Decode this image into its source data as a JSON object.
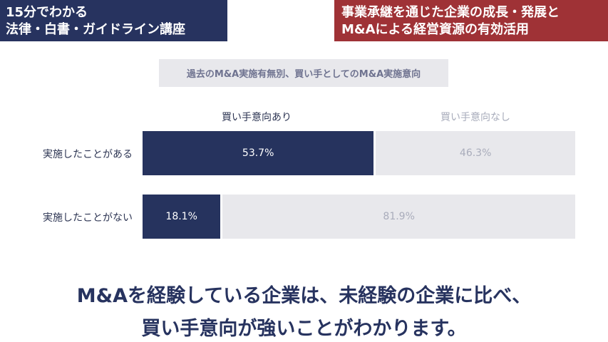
{
  "header": {
    "left": [
      "15分でわかる",
      "法律・白書・ガイドライン講座"
    ],
    "right": [
      "事業承継を通じた企業の成長・発展と",
      "M&Aによる経営資源の有効活用"
    ]
  },
  "chart_data": {
    "type": "bar",
    "stacked": true,
    "orientation": "horizontal",
    "percent": true,
    "title": "過去のM&A実施有無別、買い手としてのM&A実施意向",
    "categories": [
      "実施したことがある",
      "実施したことがない"
    ],
    "series": [
      {
        "name": "買い手意向あり",
        "values": [
          53.7,
          18.1
        ],
        "labels": [
          "53.7%",
          "18.1%"
        ],
        "color": "#26335e"
      },
      {
        "name": "買い手意向なし",
        "values": [
          46.3,
          81.9
        ],
        "labels": [
          "46.3%",
          "81.9%"
        ],
        "color": "#e8e8ec"
      }
    ],
    "legend": "top"
  },
  "caption": [
    "M&Aを経験している企業は、未経験の企業に比べ、",
    "買い手意向が強いことがわかります。"
  ]
}
